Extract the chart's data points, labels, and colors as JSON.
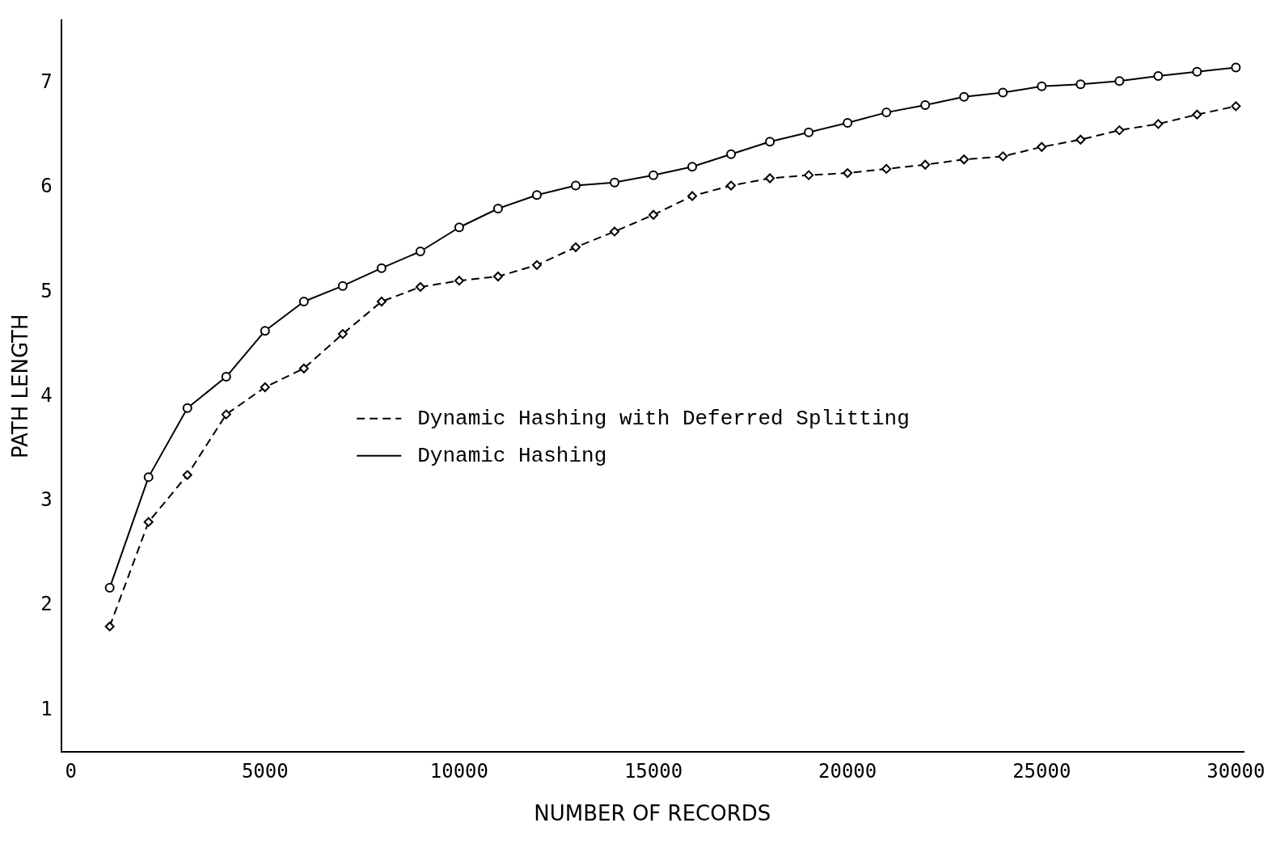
{
  "chart_data": {
    "type": "line",
    "xlabel": "NUMBER OF RECORDS",
    "ylabel": "PATH LENGTH",
    "x": [
      1000,
      2000,
      3000,
      4000,
      5000,
      6000,
      7000,
      8000,
      9000,
      10000,
      11000,
      12000,
      13000,
      14000,
      15000,
      16000,
      17000,
      18000,
      19000,
      20000,
      21000,
      22000,
      23000,
      24000,
      25000,
      26000,
      27000,
      28000,
      29000,
      30000
    ],
    "series": [
      {
        "name": "Dynamic Hashing with Deferred Splitting",
        "color": "#000000",
        "line_style": "dashed",
        "marker": "diamond",
        "values": [
          1.8,
          2.8,
          3.25,
          3.83,
          4.09,
          4.27,
          4.6,
          4.91,
          5.05,
          5.11,
          5.15,
          5.26,
          5.43,
          5.58,
          5.74,
          5.92,
          6.02,
          6.09,
          6.12,
          6.14,
          6.18,
          6.22,
          6.27,
          6.3,
          6.39,
          6.46,
          6.55,
          6.61,
          6.7,
          6.78
        ]
      },
      {
        "name": "Dynamic Hashing",
        "color": "#000000",
        "line_style": "solid",
        "marker": "circle",
        "values": [
          2.17,
          3.23,
          3.89,
          4.19,
          4.63,
          4.91,
          5.06,
          5.23,
          5.39,
          5.62,
          5.8,
          5.93,
          6.02,
          6.05,
          6.12,
          6.2,
          6.32,
          6.44,
          6.53,
          6.62,
          6.72,
          6.79,
          6.87,
          6.91,
          6.97,
          6.99,
          7.02,
          7.07,
          7.11,
          7.15
        ]
      }
    ],
    "xlim": [
      -250,
      30200
    ],
    "xticks": [
      0,
      5000,
      10000,
      15000,
      20000,
      25000,
      30000
    ],
    "ylim": [
      0.6,
      7.6
    ],
    "yticks": [
      1,
      2,
      3,
      4,
      5,
      6,
      7
    ],
    "grid": false,
    "legend": "left"
  }
}
